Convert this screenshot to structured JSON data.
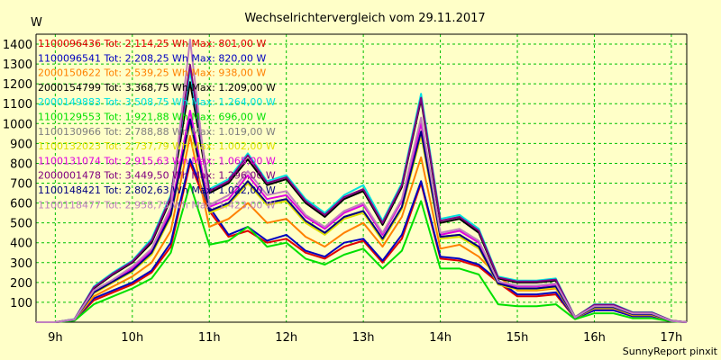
{
  "chart_data": {
    "type": "line",
    "title": "Wechselrichtervergleich vom 29.11.2017",
    "ylabel": "W",
    "credit": "SunnyReport pinxit",
    "x_ticks": [
      "9h",
      "10h",
      "11h",
      "12h",
      "13h",
      "14h",
      "15h",
      "16h",
      "17h"
    ],
    "x_tick_hours": [
      9,
      10,
      11,
      12,
      13,
      14,
      15,
      16,
      17
    ],
    "y_ticks": [
      100,
      200,
      300,
      400,
      500,
      600,
      700,
      800,
      900,
      1000,
      1100,
      1200,
      1300,
      1400
    ],
    "xlim": [
      8.75,
      17.2
    ],
    "ylim": [
      0,
      1450
    ],
    "grid": true,
    "x": [
      8.75,
      9.0,
      9.25,
      9.5,
      9.75,
      10.0,
      10.25,
      10.5,
      10.75,
      11.0,
      11.25,
      11.5,
      11.75,
      12.0,
      12.25,
      12.5,
      12.75,
      13.0,
      13.25,
      13.5,
      13.75,
      14.0,
      14.25,
      14.5,
      14.75,
      15.0,
      15.25,
      15.5,
      15.75,
      16.0,
      16.25,
      16.5,
      16.75,
      17.0,
      17.2
    ],
    "series": [
      {
        "name": "1100096436",
        "legend": "1100096436 Tot: 2.114,25 Wh Max: 801,00 W",
        "color": "#e00000",
        "values": [
          0,
          0,
          10,
          110,
          150,
          190,
          250,
          380,
          801,
          560,
          430,
          460,
          400,
          420,
          350,
          320,
          380,
          410,
          300,
          420,
          700,
          320,
          310,
          280,
          200,
          130,
          130,
          140,
          20,
          60,
          60,
          30,
          30,
          5,
          0
        ]
      },
      {
        "name": "1100096541",
        "legend": "1100096541 Tot: 2.208,25 Wh Max: 820,00 W",
        "color": "#0000c0",
        "values": [
          0,
          0,
          10,
          120,
          160,
          200,
          260,
          400,
          820,
          580,
          440,
          480,
          410,
          440,
          360,
          330,
          400,
          420,
          310,
          440,
          710,
          330,
          320,
          290,
          210,
          140,
          140,
          150,
          20,
          60,
          60,
          30,
          30,
          5,
          0
        ]
      },
      {
        "name": "2000150622",
        "legend": "2000150622 Tot: 2.539,25 Wh Max: 938,00 W",
        "color": "#ff8000",
        "values": [
          0,
          0,
          12,
          130,
          180,
          230,
          300,
          460,
          938,
          480,
          520,
          600,
          500,
          520,
          430,
          380,
          450,
          500,
          380,
          530,
          830,
          370,
          390,
          330,
          230,
          160,
          160,
          170,
          20,
          70,
          70,
          35,
          35,
          6,
          0
        ]
      },
      {
        "name": "2000154799",
        "legend": "2000154799 Tot: 3.368,75 Wh Max: 1.209,00 W",
        "color": "#000000",
        "values": [
          0,
          0,
          15,
          170,
          240,
          300,
          400,
          620,
          1209,
          650,
          700,
          820,
          690,
          720,
          600,
          530,
          620,
          660,
          490,
          680,
          1120,
          500,
          520,
          450,
          220,
          200,
          200,
          210,
          25,
          85,
          85,
          45,
          45,
          8,
          0
        ]
      },
      {
        "name": "2000149883",
        "legend": "2000149883 Tot: 3.508,75 Wh Max: 1.264,00 W",
        "color": "#00e0e0",
        "values": [
          0,
          0,
          16,
          180,
          250,
          310,
          420,
          640,
          1264,
          670,
          720,
          850,
          710,
          740,
          620,
          550,
          640,
          690,
          510,
          700,
          1150,
          520,
          540,
          470,
          230,
          210,
          210,
          220,
          25,
          90,
          90,
          50,
          50,
          8,
          0
        ]
      },
      {
        "name": "1100129553",
        "legend": "1100129553 Tot: 1.921,88 Wh Max: 696,00 W",
        "color": "#00e000",
        "values": [
          0,
          0,
          8,
          90,
          130,
          170,
          220,
          350,
          696,
          390,
          410,
          480,
          380,
          400,
          320,
          290,
          340,
          370,
          270,
          360,
          610,
          270,
          270,
          240,
          90,
          80,
          80,
          90,
          15,
          45,
          45,
          20,
          20,
          4,
          0
        ]
      },
      {
        "name": "1100130966",
        "legend": "1100130966 Tot: 2.788,88 Wh Max: 1.019,00 W",
        "color": "#808080",
        "values": [
          0,
          0,
          13,
          150,
          200,
          260,
          350,
          540,
          1019,
          560,
          600,
          700,
          600,
          620,
          510,
          450,
          530,
          560,
          420,
          580,
          950,
          430,
          440,
          380,
          190,
          170,
          170,
          180,
          22,
          75,
          75,
          40,
          40,
          7,
          0
        ]
      },
      {
        "name": "1100132023",
        "legend": "1100132023 Tot: 2.737,79 Wh Max: 1.002,00 W",
        "color": "#e0e000",
        "values": [
          0,
          0,
          13,
          145,
          200,
          255,
          340,
          530,
          1002,
          550,
          590,
          700,
          590,
          610,
          500,
          440,
          520,
          550,
          410,
          570,
          940,
          420,
          430,
          370,
          190,
          165,
          165,
          175,
          22,
          72,
          72,
          38,
          38,
          7,
          0
        ]
      },
      {
        "name": "1100131074",
        "legend": "1100131074 Tot: 2.915,63 Wh Max: 1.065,00 W",
        "color": "#e000e0",
        "values": [
          0,
          0,
          14,
          155,
          210,
          270,
          360,
          560,
          1065,
          580,
          620,
          740,
          620,
          640,
          530,
          470,
          550,
          590,
          440,
          610,
          1000,
          440,
          460,
          400,
          200,
          180,
          180,
          190,
          24,
          78,
          78,
          42,
          42,
          7,
          0
        ]
      },
      {
        "name": "2000001478",
        "legend": "2000001478 Tot: 3.449,50 Wh Max: 1.296,00 W",
        "color": "#800080",
        "values": [
          0,
          0,
          15,
          175,
          245,
          305,
          410,
          630,
          1296,
          660,
          710,
          840,
          700,
          730,
          610,
          540,
          630,
          670,
          500,
          690,
          1130,
          510,
          530,
          460,
          225,
          205,
          205,
          215,
          25,
          88,
          88,
          48,
          48,
          8,
          0
        ]
      },
      {
        "name": "1100148421",
        "legend": "1100148421 Tot: 2.802,63 Wh Max: 1.022,00 W",
        "color": "#000080",
        "values": [
          0,
          0,
          13,
          150,
          205,
          260,
          350,
          540,
          1022,
          560,
          600,
          710,
          600,
          620,
          510,
          450,
          530,
          560,
          420,
          580,
          960,
          430,
          440,
          380,
          195,
          170,
          170,
          180,
          22,
          75,
          75,
          40,
          40,
          7,
          0
        ]
      },
      {
        "name": "1100118477",
        "legend": "1100118477 Tot: 2.958,75 Wh Max: 1.423,00 W",
        "color": "#c080c0",
        "values": [
          0,
          0,
          14,
          160,
          215,
          280,
          370,
          580,
          1423,
          590,
          640,
          760,
          640,
          660,
          540,
          480,
          560,
          600,
          450,
          620,
          1030,
          450,
          470,
          410,
          205,
          185,
          185,
          195,
          24,
          80,
          80,
          44,
          44,
          7,
          0
        ]
      }
    ]
  }
}
